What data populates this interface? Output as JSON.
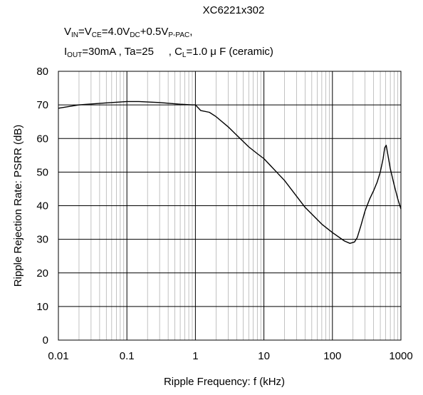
{
  "header": {
    "line1": "XC6221x302",
    "line2": {
      "v": "V",
      "in": "IN",
      "eq1": "=V",
      "ce": "CE",
      "eq2": "=4.0V",
      "dc": "DC",
      "plus": "+0.5V",
      "ppac": "P-PAC",
      "tail": ","
    },
    "line3": {
      "i": "I",
      "out": "OUT",
      "mid": "=30mA , Ta=25     , C",
      "l": "L",
      "tail": "=1.0 μ F (ceramic)"
    }
  },
  "chart_data": {
    "type": "line",
    "title": "XC6221x302",
    "xlabel": "Ripple Frequency: f (kHz)",
    "ylabel": "Ripple Rejection Rate: PSRR (dB)",
    "xscale": "log",
    "xlim": [
      0.01,
      1000
    ],
    "ylim": [
      0,
      80
    ],
    "grid": true,
    "x_ticks": [
      "0.01",
      "0.1",
      "1",
      "10",
      "100",
      "1000"
    ],
    "y_ticks": [
      "0",
      "10",
      "20",
      "30",
      "40",
      "50",
      "60",
      "70",
      "80"
    ],
    "series": [
      {
        "color": "#000000",
        "x": [
          0.01,
          0.02,
          0.05,
          0.1,
          0.15,
          0.3,
          0.6,
          0.9,
          1.0,
          1.2,
          1.6,
          2.0,
          3.0,
          4.0,
          6.0,
          8.0,
          10.0,
          20.0,
          40.0,
          70.0,
          100.0,
          150.0,
          180.0,
          210.0,
          230.0,
          260.0,
          300.0,
          350.0,
          400.0,
          450.0,
          500.0,
          550.0,
          580.0,
          610.0,
          640.0,
          700.0,
          800.0,
          900.0,
          1000.0
        ],
        "y": [
          69.0,
          70.0,
          70.6,
          71.0,
          71.0,
          70.7,
          70.2,
          70.0,
          70.0,
          68.3,
          67.8,
          66.5,
          63.5,
          61.0,
          57.5,
          55.5,
          54.0,
          47.5,
          39.5,
          34.5,
          32.0,
          29.5,
          28.8,
          29.2,
          30.5,
          34.0,
          38.5,
          42.0,
          44.5,
          47.0,
          50.0,
          54.0,
          57.2,
          58.0,
          55.5,
          51.0,
          46.0,
          42.0,
          39.0
        ]
      }
    ]
  }
}
